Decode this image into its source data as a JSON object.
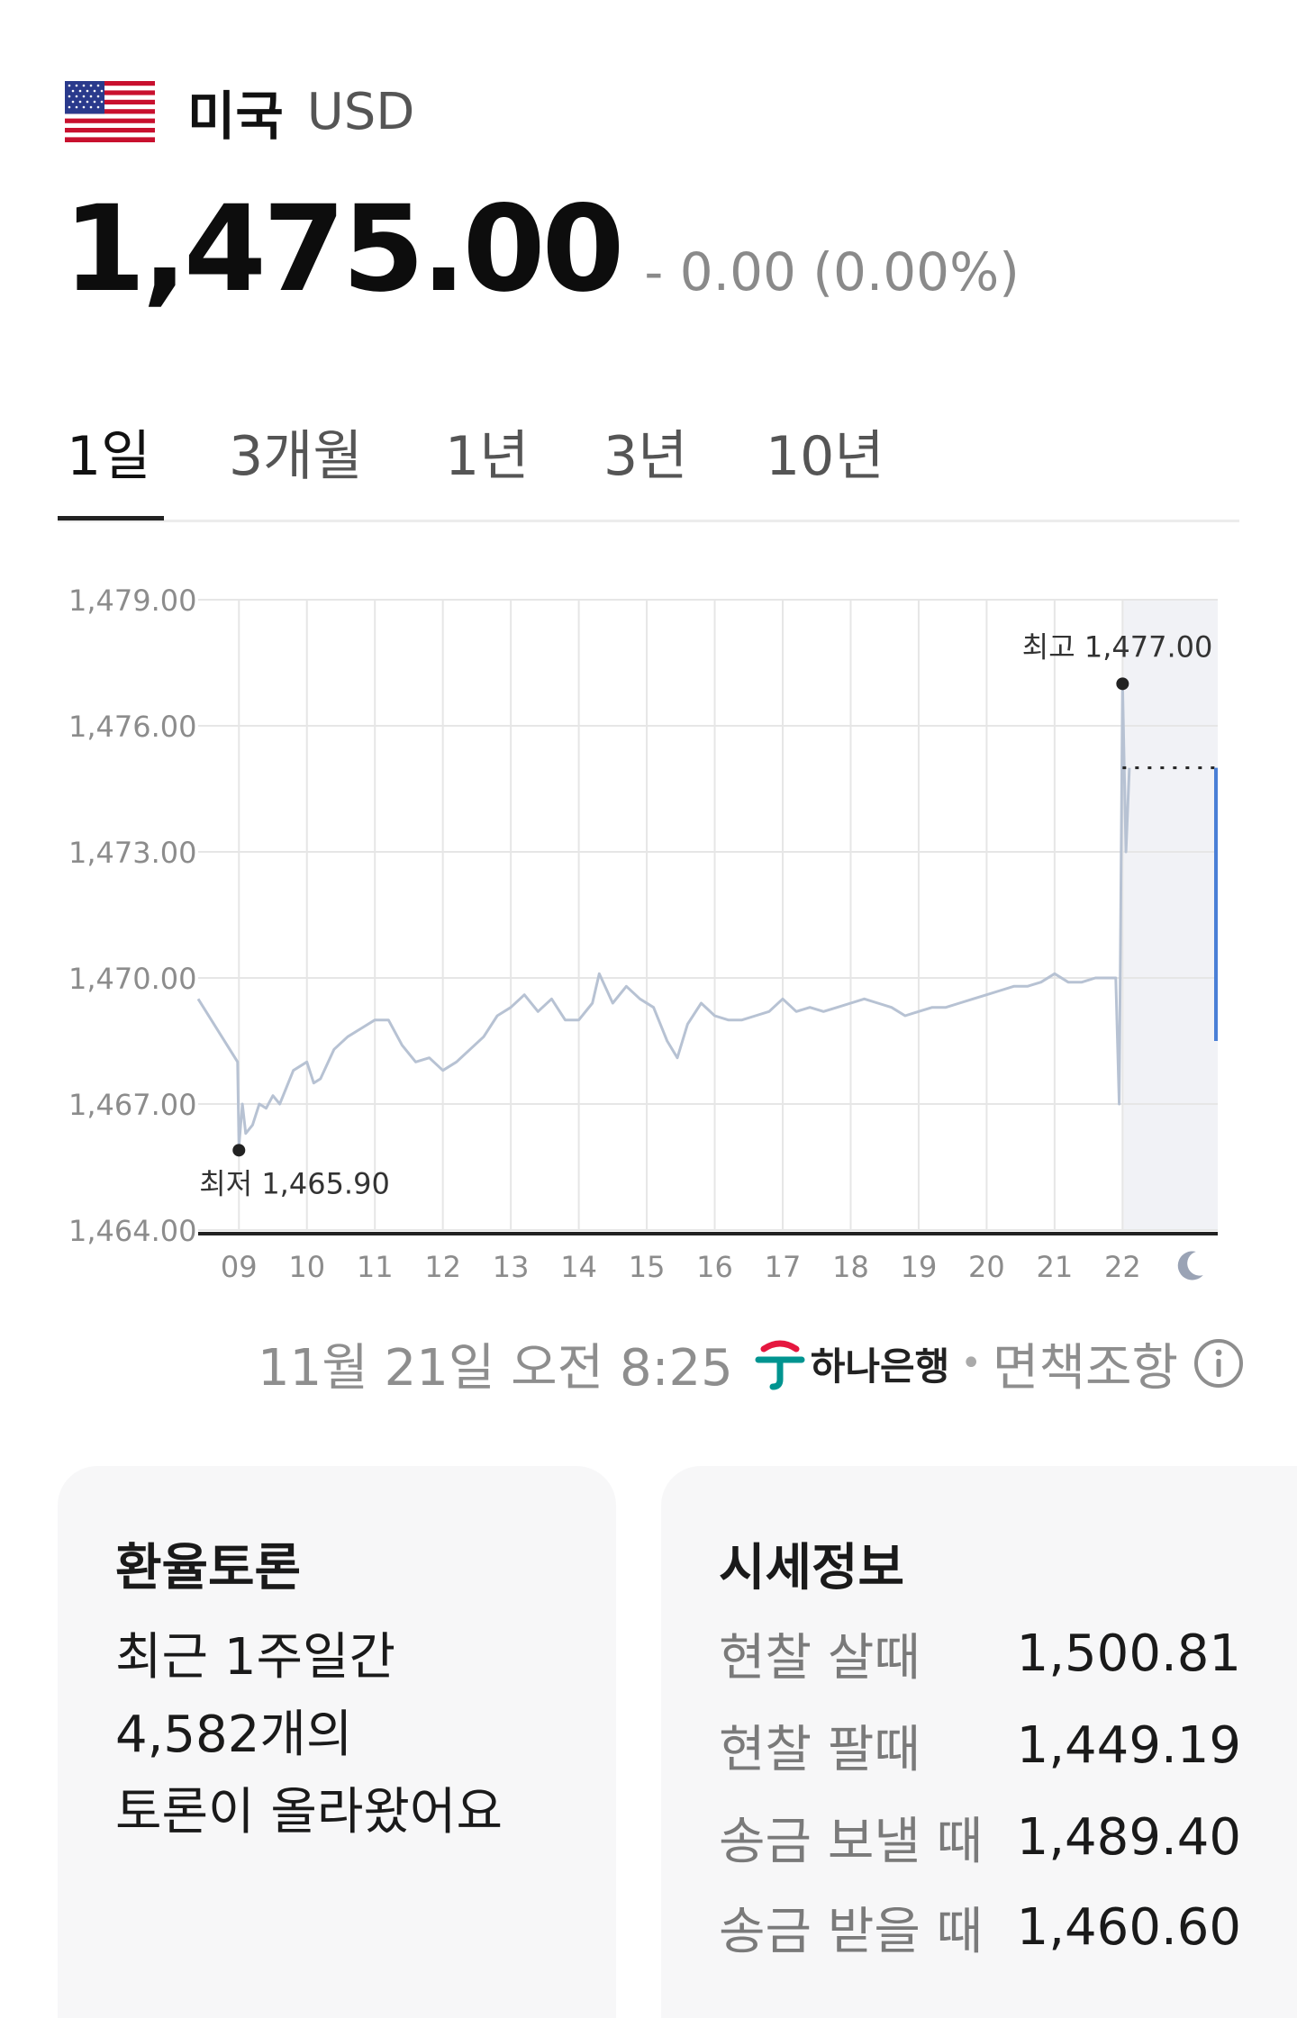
{
  "currency": {
    "country": "미국",
    "code": "USD",
    "price": "1,475.00",
    "change": "- 0.00 (0.00%)"
  },
  "tabs": [
    {
      "label": "1일",
      "active": true
    },
    {
      "label": "3개월",
      "active": false
    },
    {
      "label": "1년",
      "active": false
    },
    {
      "label": "3년",
      "active": false
    },
    {
      "label": "10년",
      "active": false
    }
  ],
  "chart_data": {
    "type": "line",
    "ylim": [
      1464.0,
      1479.0
    ],
    "y_ticks": [
      "1,479.00",
      "1,476.00",
      "1,473.00",
      "1,470.00",
      "1,467.00",
      "1,464.00"
    ],
    "x_ticks": [
      "09",
      "10",
      "11",
      "12",
      "13",
      "14",
      "15",
      "16",
      "17",
      "18",
      "19",
      "20",
      "21",
      "22"
    ],
    "x_extra_icon": "moon-icon",
    "series": [
      {
        "x": [
          8.4,
          8.98,
          9.0,
          9.05,
          9.1,
          9.2,
          9.3,
          9.4,
          9.5,
          9.6,
          9.8,
          10.0,
          10.1,
          10.2,
          10.4,
          10.6,
          10.8,
          11.0,
          11.2,
          11.4,
          11.6,
          11.8,
          12.0,
          12.2,
          12.4,
          12.6,
          12.8,
          13.0,
          13.2,
          13.4,
          13.6,
          13.8,
          14.0,
          14.2,
          14.3,
          14.5,
          14.7,
          14.9,
          15.1,
          15.3,
          15.45,
          15.6,
          15.8,
          16.0,
          16.2,
          16.4,
          16.6,
          16.8,
          17.0,
          17.2,
          17.4,
          17.6,
          17.8,
          18.0,
          18.2,
          18.4,
          18.6,
          18.8,
          19.0,
          19.2,
          19.4,
          19.6,
          19.8,
          20.0,
          20.2,
          20.4,
          20.6,
          20.8,
          21.0,
          21.2,
          21.4,
          21.6,
          21.9,
          21.95,
          22.0,
          22.05,
          22.1
        ],
        "values": [
          1469.5,
          1468.0,
          1466.0,
          1467.0,
          1466.3,
          1466.5,
          1467.0,
          1466.9,
          1467.2,
          1467.0,
          1467.8,
          1468.0,
          1467.5,
          1467.6,
          1468.3,
          1468.6,
          1468.8,
          1469.0,
          1469.0,
          1468.4,
          1468.0,
          1468.1,
          1467.8,
          1468.0,
          1468.3,
          1468.6,
          1469.1,
          1469.3,
          1469.6,
          1469.2,
          1469.5,
          1469.0,
          1469.0,
          1469.4,
          1470.1,
          1469.4,
          1469.8,
          1469.5,
          1469.3,
          1468.5,
          1468.1,
          1468.9,
          1469.4,
          1469.1,
          1469.0,
          1469.0,
          1469.1,
          1469.2,
          1469.5,
          1469.2,
          1469.3,
          1469.2,
          1469.3,
          1469.4,
          1469.5,
          1469.4,
          1469.3,
          1469.1,
          1469.2,
          1469.3,
          1469.3,
          1469.4,
          1469.5,
          1469.6,
          1469.7,
          1469.8,
          1469.8,
          1469.9,
          1470.1,
          1469.9,
          1469.9,
          1470.0,
          1470.0,
          1467.0,
          1477.0,
          1473.0,
          1475.0
        ]
      }
    ],
    "marker_high": {
      "label": "최고 1,477.00",
      "x": 22.0,
      "value": 1477.0
    },
    "marker_low": {
      "label": "최저 1,465.90",
      "x": 9.0,
      "value": 1465.9
    },
    "current": {
      "value": 1475.0,
      "x_end": 23.4
    },
    "bar": {
      "x": 23.4,
      "from": 1468.5,
      "to": 1475.0
    },
    "shaded_from_x": 22.0,
    "x_range": [
      8.4,
      23.4
    ],
    "colors": {
      "line": "#b7c2d3",
      "bar": "#4a7fd6",
      "shade": "#f1f2f6",
      "grid": "#e6e6e6",
      "axis": "#222222",
      "tick": "#8c8c8c"
    }
  },
  "source": {
    "timestamp": "11월 21일 오전 8:25",
    "bank": "하나은행",
    "separator": "•",
    "disclaimer": "면책조항"
  },
  "discussion": {
    "title": "환율토론",
    "lines": [
      "최근 1주일간",
      "4,582개의",
      "토론이 올라왔어요"
    ]
  },
  "rates": {
    "title": "시세정보",
    "items": [
      {
        "label": "현찰 살때",
        "value": "1,500.81"
      },
      {
        "label": "현찰 팔때",
        "value": "1,449.19"
      },
      {
        "label": "송금 보낼 때",
        "value": "1,489.40"
      },
      {
        "label": "송금 받을 때",
        "value": "1,460.60"
      }
    ]
  }
}
